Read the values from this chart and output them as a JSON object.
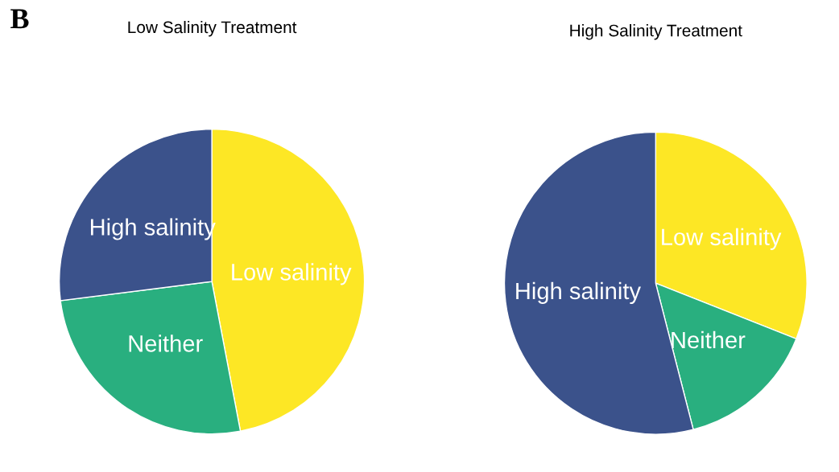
{
  "chart_data": [
    {
      "type": "pie",
      "title": "Low Salinity Treatment",
      "annotations": [
        "B"
      ],
      "categories": [
        "Low salinity",
        "Neither",
        "High salinity"
      ],
      "values": [
        47,
        26,
        27
      ],
      "colors": [
        "#fde725",
        "#29af7f",
        "#3b528b"
      ]
    },
    {
      "type": "pie",
      "title": "High Salinity Treatment",
      "categories": [
        "Low salinity",
        "Neither",
        "High salinity"
      ],
      "values": [
        31,
        15,
        54
      ],
      "colors": [
        "#fde725",
        "#29af7f",
        "#3b528b"
      ]
    }
  ]
}
